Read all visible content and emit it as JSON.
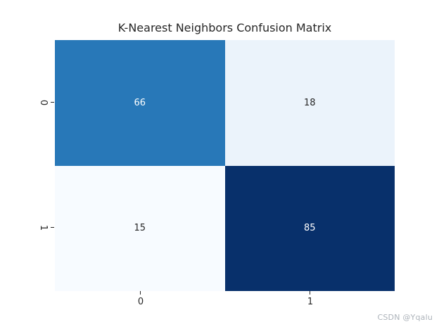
{
  "title": "K-Nearest Neighbors Confusion Matrix",
  "watermark": "CSDN @Yqalu",
  "colors": {
    "background": "#ffffff",
    "title_text": "#262626",
    "tick_text": "#262626",
    "tick_mark": "#262626",
    "watermark_text": "#adb3ba",
    "annotation_light": "#ffffff",
    "annotation_dark": "#262626"
  },
  "chart_data": {
    "type": "heatmap",
    "title": "K-Nearest Neighbors Confusion Matrix",
    "xlabel": "",
    "ylabel": "",
    "x_tick_labels": [
      "0",
      "1"
    ],
    "y_tick_labels": [
      "0",
      "1"
    ],
    "matrix": [
      [
        66,
        18
      ],
      [
        15,
        85
      ]
    ],
    "cell_labels": [
      [
        "66",
        "18"
      ],
      [
        "15",
        "85"
      ]
    ],
    "cell_colors": [
      [
        "#2878b8",
        "#ebf3fb"
      ],
      [
        "#f7fbff",
        "#08306b"
      ]
    ],
    "text_colors": [
      [
        "#ffffff",
        "#262626"
      ],
      [
        "#262626",
        "#ffffff"
      ]
    ],
    "colormap": "Blues",
    "vmin": 15,
    "vmax": 85,
    "grid": false,
    "legend": "none",
    "colorbar": false
  }
}
